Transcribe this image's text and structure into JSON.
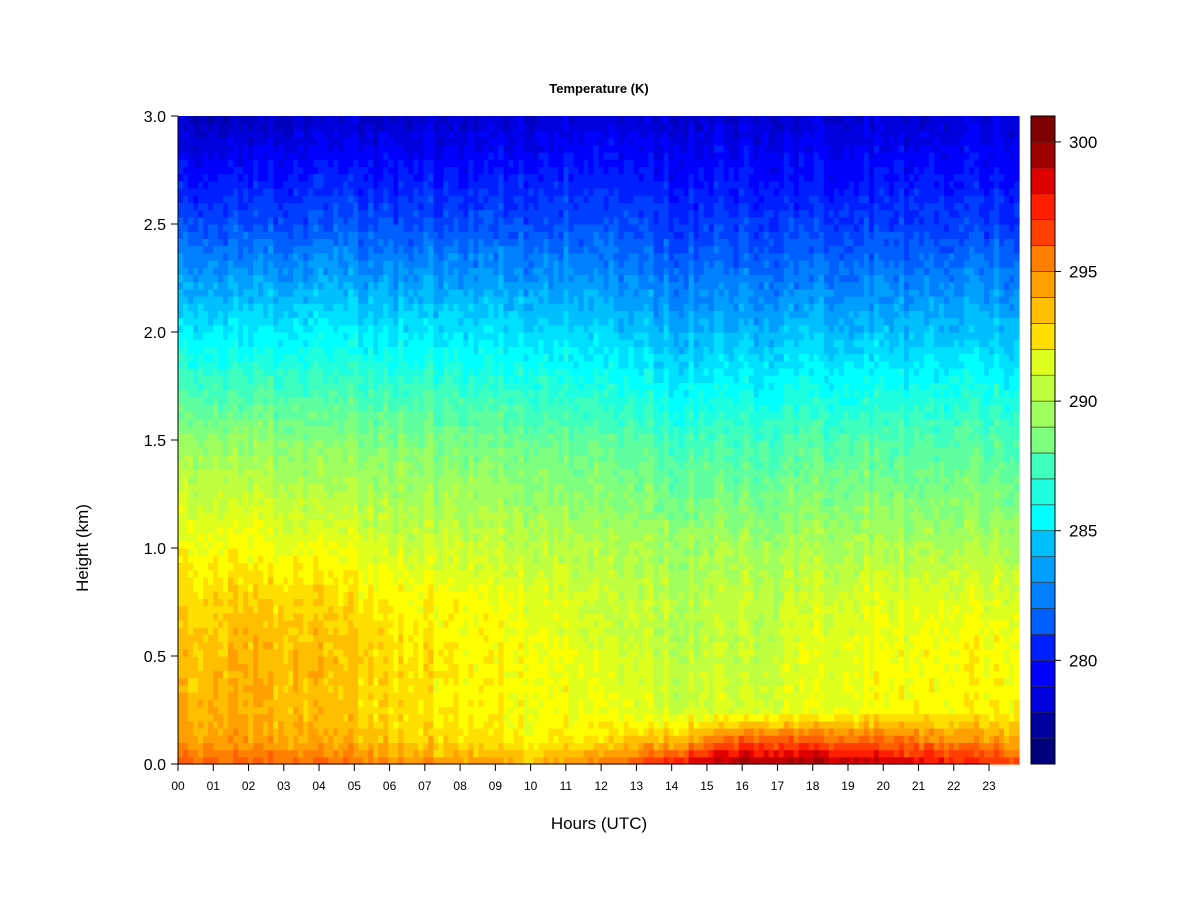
{
  "chart_data": {
    "type": "heatmap",
    "title": "Temperature (K)",
    "xlabel": "Hours (UTC)",
    "ylabel": "Height (km)",
    "x_ticks": [
      "00",
      "01",
      "02",
      "03",
      "04",
      "05",
      "06",
      "07",
      "08",
      "09",
      "10",
      "11",
      "12",
      "13",
      "14",
      "15",
      "16",
      "17",
      "18",
      "19",
      "20",
      "21",
      "22",
      "23"
    ],
    "xlim": [
      0,
      23.85
    ],
    "y_ticks": [
      "0.0",
      "0.5",
      "1.0",
      "1.5",
      "2.0",
      "2.5",
      "3.0"
    ],
    "ylim": [
      0.0,
      3.0
    ],
    "colorbar": {
      "ticks": [
        "280",
        "285",
        "290",
        "295",
        "300"
      ],
      "range": [
        276,
        301
      ],
      "levels": 25,
      "colors": [
        "#00007f",
        "#00009f",
        "#0000bf",
        "#0000df",
        "#0000ff",
        "#001fff",
        "#003fff",
        "#005fff",
        "#007fff",
        "#009fff",
        "#00bfff",
        "#00dfff",
        "#00ffff",
        "#1fffdf",
        "#3fffbf",
        "#5fff9f",
        "#7fff7f",
        "#9fff5f",
        "#bfff3f",
        "#dfff1f",
        "#ffff00",
        "#ffdf00",
        "#ffbf00",
        "#ff9f00",
        "#ff7f00",
        "#ff5f00",
        "#ff3f00",
        "#ff1f00",
        "#df0000",
        "#bf0000",
        "#9f0000",
        "#7f0000"
      ]
    },
    "temperature_profile_hours": [
      0,
      2,
      4,
      6,
      8,
      10,
      12,
      14,
      16,
      18,
      20,
      22,
      23.85
    ],
    "temperature_profile_heights_km": [
      0.0,
      0.1,
      0.25,
      0.5,
      0.75,
      1.0,
      1.5,
      2.0,
      2.5,
      3.0
    ],
    "temperature_grid_K": [
      [
        296.0,
        294.5,
        293.8,
        293.5,
        293.0,
        292.0,
        289.5,
        285.5,
        281.5,
        278.0
      ],
      [
        296.0,
        294.5,
        294.0,
        294.0,
        293.3,
        292.0,
        289.5,
        285.5,
        281.5,
        278.0
      ],
      [
        295.5,
        294.0,
        293.5,
        293.5,
        293.0,
        291.5,
        289.0,
        285.5,
        281.5,
        278.3
      ],
      [
        295.0,
        293.5,
        292.8,
        293.0,
        292.3,
        291.0,
        289.0,
        285.3,
        281.5,
        278.3
      ],
      [
        294.5,
        293.0,
        292.3,
        292.3,
        292.0,
        290.8,
        288.8,
        285.3,
        281.5,
        278.3
      ],
      [
        294.0,
        292.5,
        291.8,
        292.0,
        291.5,
        290.5,
        288.5,
        285.0,
        281.5,
        278.5
      ],
      [
        295.0,
        292.5,
        291.5,
        291.0,
        290.5,
        290.0,
        288.0,
        284.5,
        281.3,
        278.5
      ],
      [
        298.0,
        294.0,
        291.0,
        290.5,
        290.3,
        289.8,
        287.5,
        284.0,
        281.0,
        278.5
      ],
      [
        300.0,
        296.5,
        291.0,
        290.5,
        290.5,
        289.8,
        287.5,
        284.0,
        281.0,
        278.5
      ],
      [
        299.5,
        296.5,
        291.3,
        291.3,
        291.0,
        290.0,
        287.8,
        284.3,
        281.0,
        278.5
      ],
      [
        299.0,
        296.0,
        292.0,
        291.8,
        291.3,
        290.2,
        287.8,
        284.3,
        281.0,
        278.5
      ],
      [
        298.0,
        295.0,
        292.0,
        292.0,
        291.3,
        290.0,
        287.8,
        284.3,
        281.0,
        278.5
      ],
      [
        296.5,
        294.5,
        292.3,
        292.0,
        291.3,
        290.0,
        287.8,
        284.3,
        281.0,
        278.5
      ]
    ]
  }
}
